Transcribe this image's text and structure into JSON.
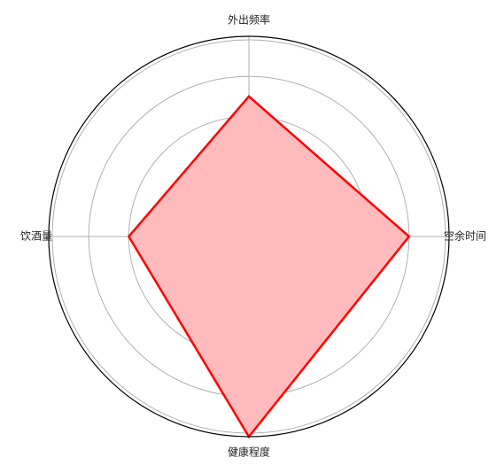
{
  "chart_data": {
    "type": "radar",
    "categories": [
      "空余时间",
      "外出频率",
      "饮酒量",
      "健康程度"
    ],
    "values": [
      8,
      7,
      6,
      10
    ],
    "rmax": 10,
    "radial_gridlines": [
      2,
      4,
      6,
      8
    ],
    "radial_tick_labels_shown": false,
    "grid": true,
    "colors": {
      "line": "#ff0000",
      "fill": "#ffbbbb",
      "grid": "#b0b0b0",
      "frame": "#000000"
    }
  }
}
